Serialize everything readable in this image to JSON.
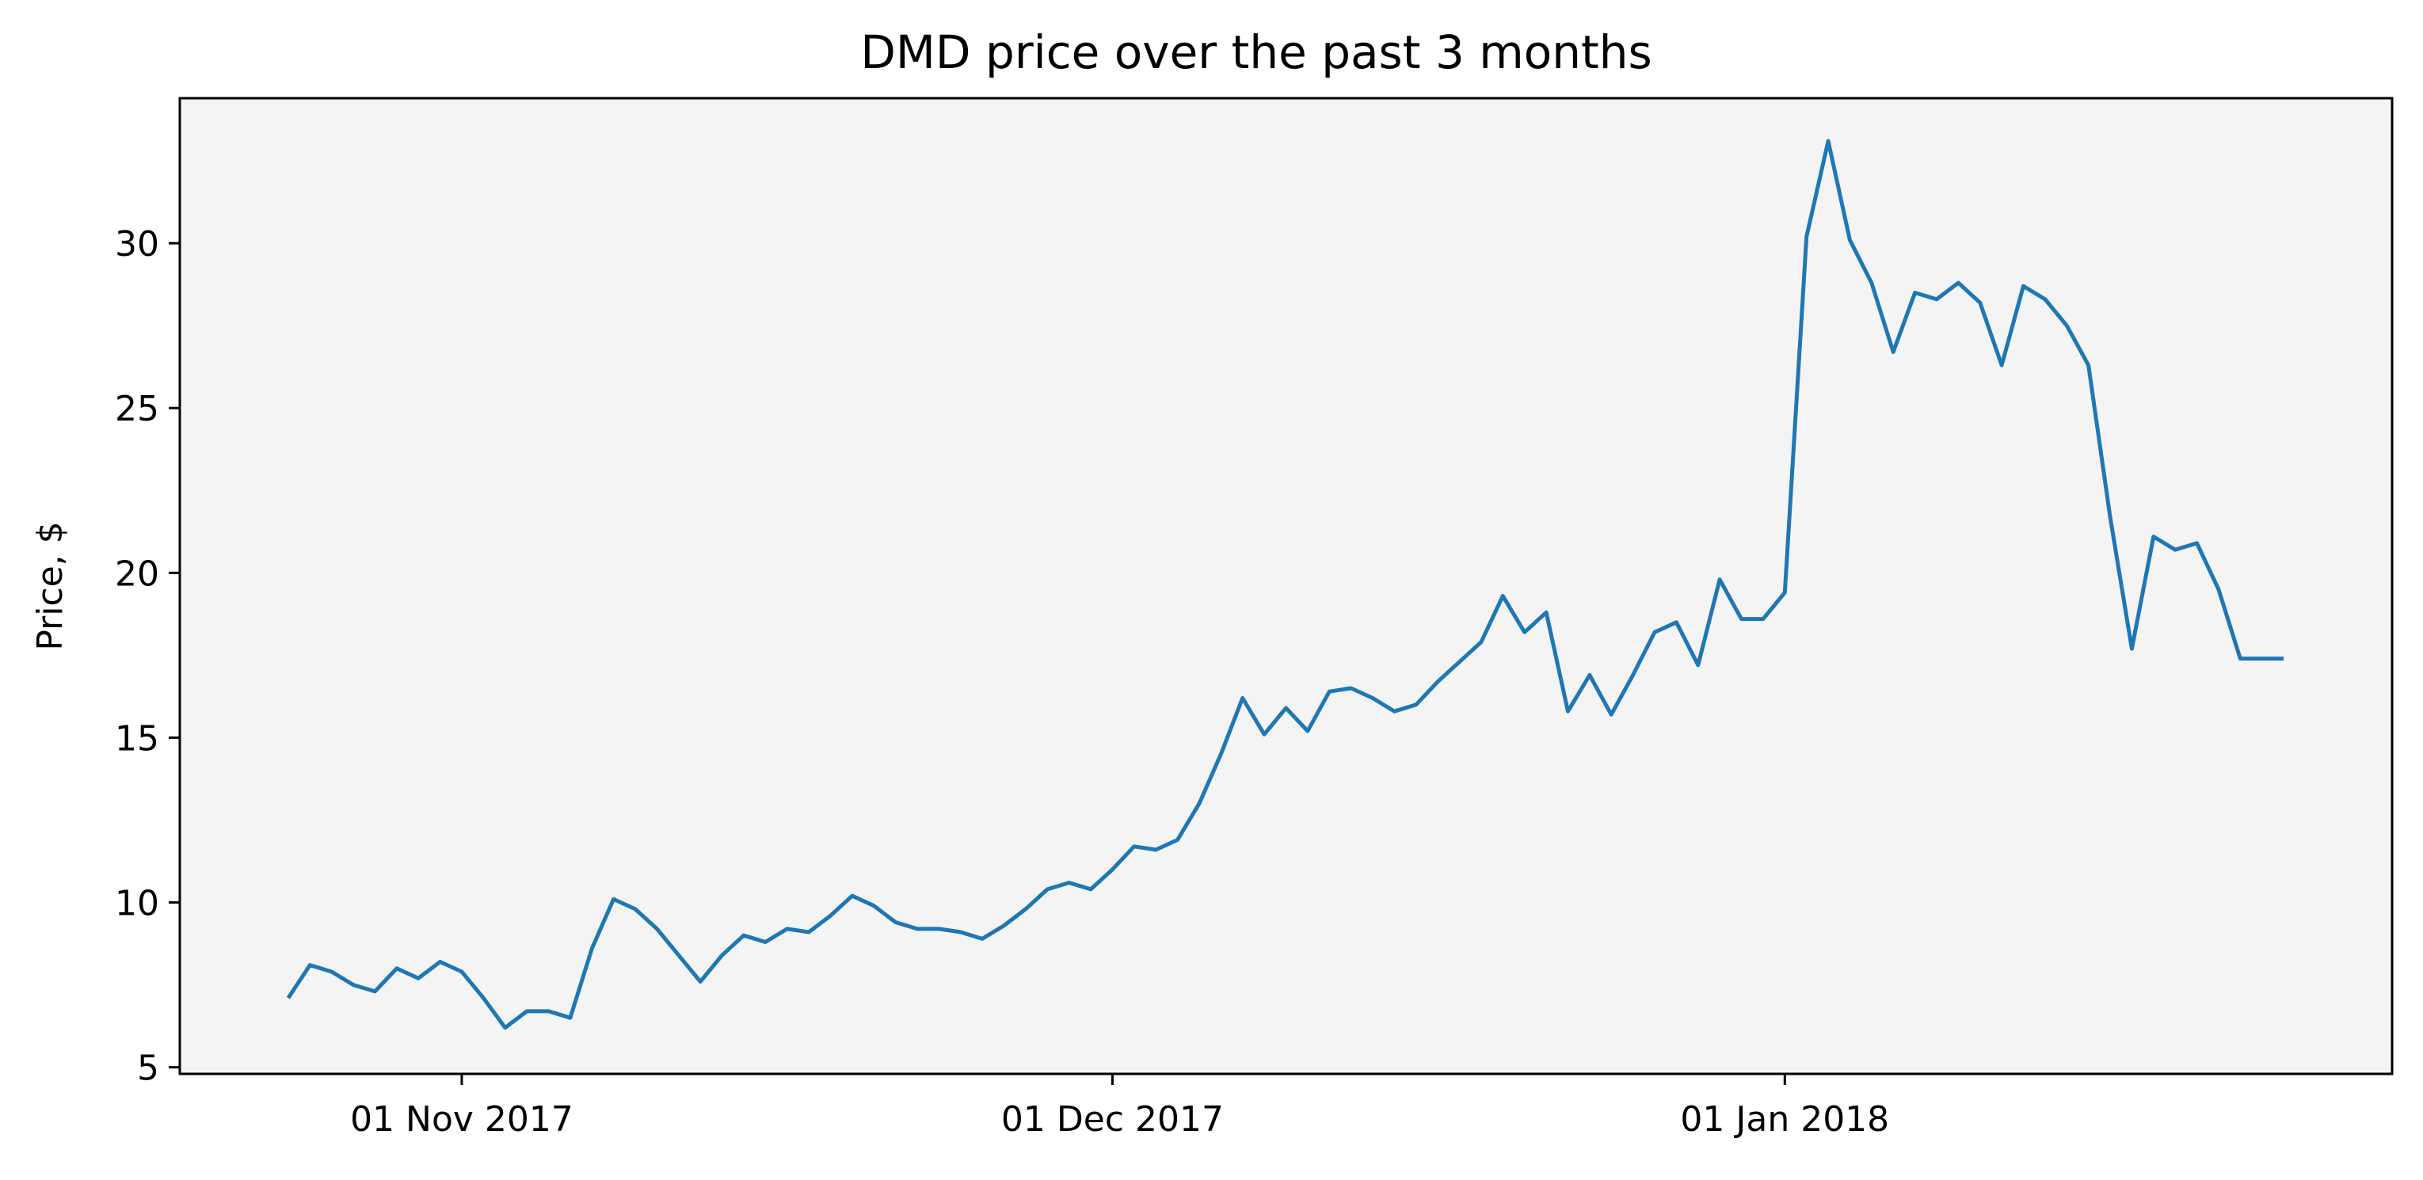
{
  "chart_data": {
    "type": "line",
    "title": "DMD price over the past 3 months",
    "xlabel": "",
    "ylabel": "Price, $",
    "ylim": [
      4.8,
      34.4
    ],
    "xlim": [
      "2017-10-19",
      "2018-01-29"
    ],
    "grid": false,
    "plot_background": "#f4f4f4",
    "line_color": "#1f77b4",
    "y_ticks": [
      {
        "value": 5,
        "label": "5"
      },
      {
        "value": 10,
        "label": "10"
      },
      {
        "value": 15,
        "label": "15"
      },
      {
        "value": 20,
        "label": "20"
      },
      {
        "value": 25,
        "label": "25"
      },
      {
        "value": 30,
        "label": "30"
      }
    ],
    "x_ticks": [
      {
        "date": "2017-11-01",
        "label": "01 Nov 2017"
      },
      {
        "date": "2017-12-01",
        "label": "01 Dec 2017"
      },
      {
        "date": "2018-01-01",
        "label": "01 Jan 2018"
      }
    ],
    "series": [
      {
        "x": [
          "2017-10-24",
          "2017-10-25",
          "2017-10-26",
          "2017-10-27",
          "2017-10-28",
          "2017-10-29",
          "2017-10-30",
          "2017-10-31",
          "2017-11-01",
          "2017-11-02",
          "2017-11-03",
          "2017-11-04",
          "2017-11-05",
          "2017-11-06",
          "2017-11-07",
          "2017-11-08",
          "2017-11-09",
          "2017-11-10",
          "2017-11-11",
          "2017-11-12",
          "2017-11-13",
          "2017-11-14",
          "2017-11-15",
          "2017-11-16",
          "2017-11-17",
          "2017-11-18",
          "2017-11-19",
          "2017-11-20",
          "2017-11-21",
          "2017-11-22",
          "2017-11-23",
          "2017-11-24",
          "2017-11-25",
          "2017-11-26",
          "2017-11-27",
          "2017-11-28",
          "2017-11-29",
          "2017-11-30",
          "2017-12-01",
          "2017-12-02",
          "2017-12-03",
          "2017-12-04",
          "2017-12-05",
          "2017-12-06",
          "2017-12-07",
          "2017-12-08",
          "2017-12-09",
          "2017-12-10",
          "2017-12-11",
          "2017-12-12",
          "2017-12-13",
          "2017-12-14",
          "2017-12-15",
          "2017-12-16",
          "2017-12-17",
          "2017-12-18",
          "2017-12-19",
          "2017-12-20",
          "2017-12-21",
          "2017-12-22",
          "2017-12-23",
          "2017-12-24",
          "2017-12-25",
          "2017-12-26",
          "2017-12-27",
          "2017-12-28",
          "2017-12-29",
          "2017-12-30",
          "2017-12-31",
          "2018-01-01",
          "2018-01-02",
          "2018-01-03",
          "2018-01-04",
          "2018-01-05",
          "2018-01-06",
          "2018-01-07",
          "2018-01-08",
          "2018-01-09",
          "2018-01-10",
          "2018-01-11",
          "2018-01-12",
          "2018-01-13",
          "2018-01-14",
          "2018-01-15",
          "2018-01-16",
          "2018-01-17",
          "2018-01-18",
          "2018-01-19",
          "2018-01-20",
          "2018-01-21",
          "2018-01-22",
          "2018-01-23",
          "2018-01-24"
        ],
        "values": [
          7.1,
          8.1,
          7.9,
          7.5,
          7.3,
          8.0,
          7.7,
          8.2,
          7.9,
          7.1,
          6.2,
          6.7,
          6.7,
          6.5,
          8.6,
          10.1,
          9.8,
          9.2,
          8.4,
          7.6,
          8.4,
          9.0,
          8.8,
          9.2,
          9.1,
          9.6,
          10.2,
          9.9,
          9.4,
          9.2,
          9.2,
          9.1,
          8.9,
          9.3,
          9.8,
          10.4,
          10.6,
          10.4,
          11.0,
          11.7,
          11.6,
          11.9,
          13.0,
          14.5,
          16.2,
          15.1,
          15.9,
          15.2,
          16.4,
          16.5,
          16.2,
          15.8,
          16.0,
          16.7,
          17.3,
          17.9,
          19.3,
          18.2,
          18.8,
          15.8,
          16.9,
          15.7,
          16.9,
          18.2,
          18.5,
          17.2,
          19.8,
          18.6,
          18.6,
          19.4,
          30.2,
          33.1,
          30.1,
          28.8,
          26.7,
          28.5,
          28.3,
          28.8,
          28.2,
          26.3,
          28.7,
          28.3,
          27.5,
          26.3,
          21.7,
          17.7,
          21.1,
          20.7,
          20.9,
          19.5,
          17.4,
          17.4,
          17.4
        ]
      }
    ]
  }
}
